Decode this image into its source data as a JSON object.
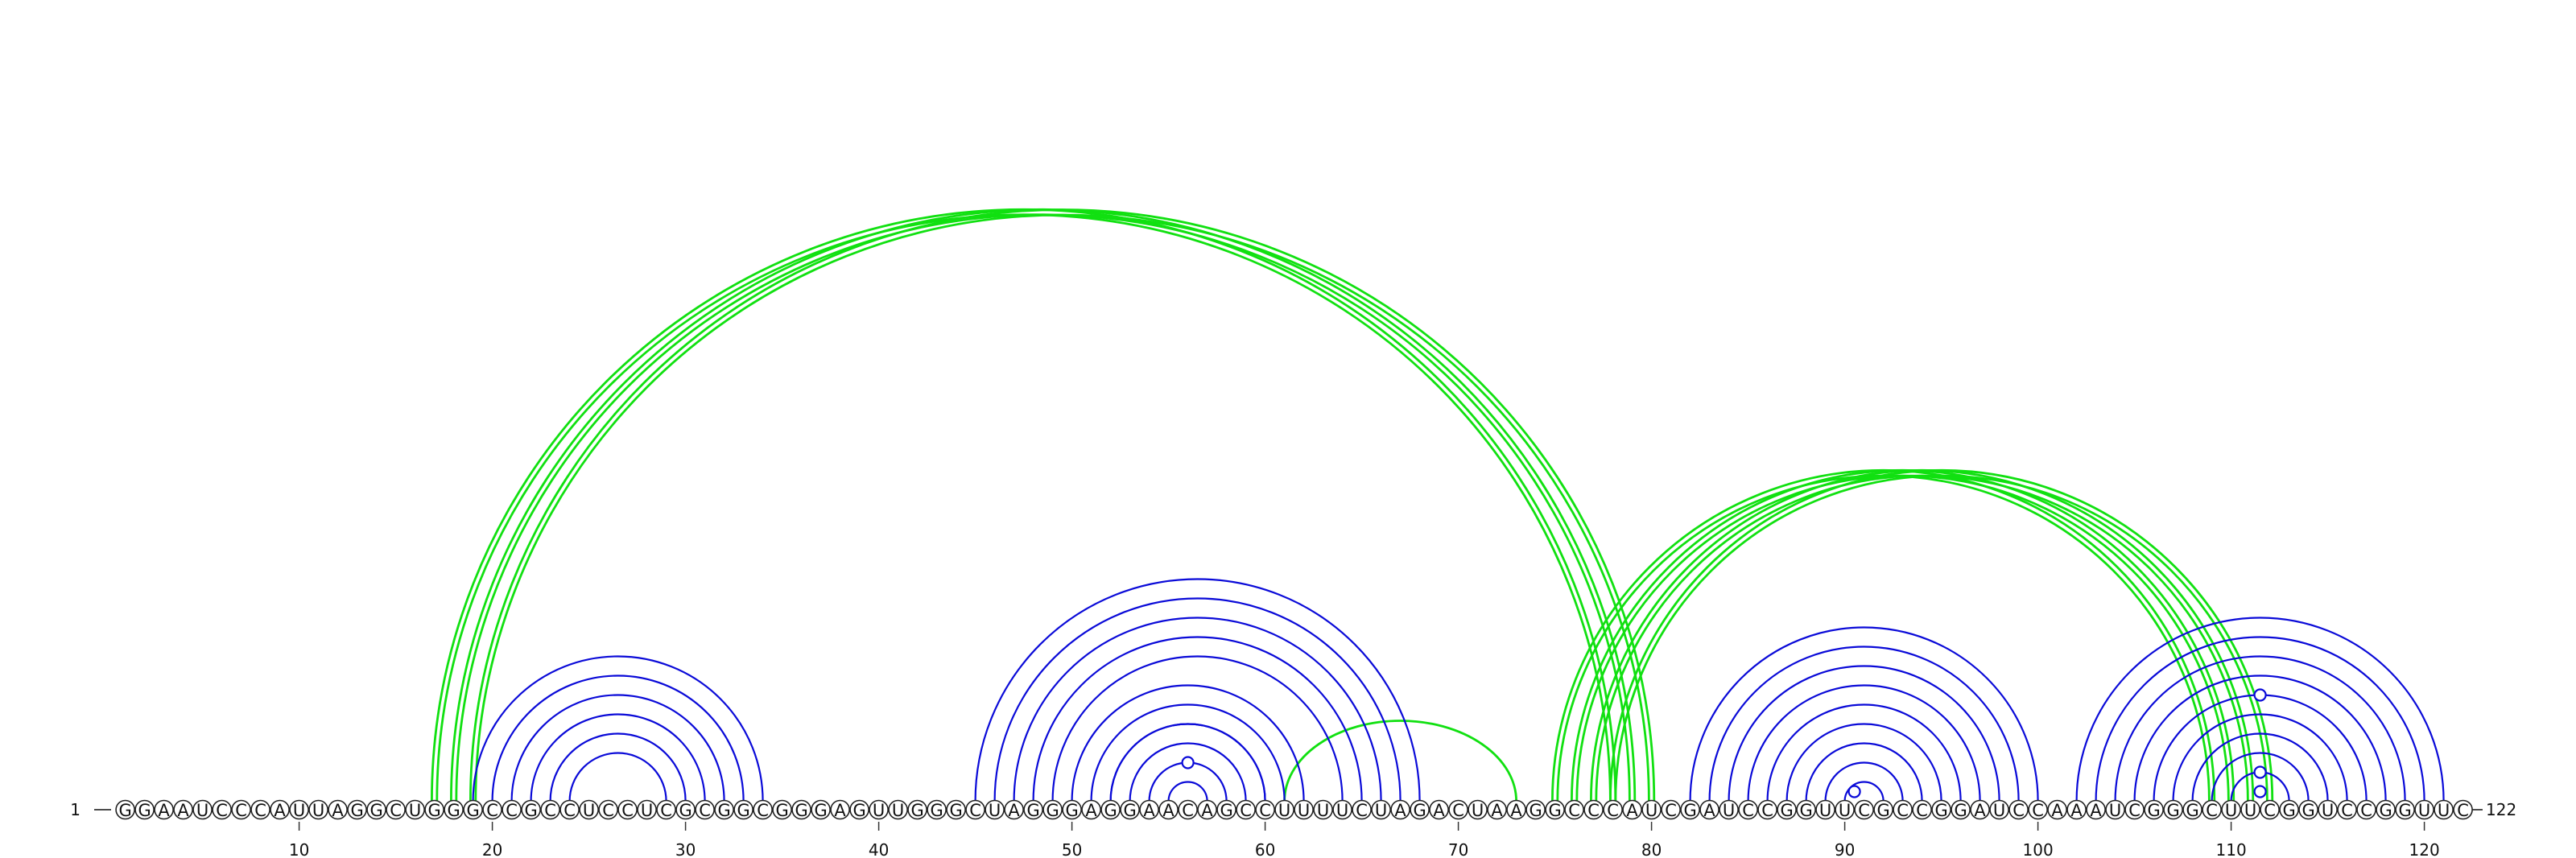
{
  "diagram": {
    "type": "rna-arc-diagram",
    "sequence": "GGAAUCCCAUUAGGCUGGGCCGCCUCCUCGCGGCGGGAGUUGGGCUAGGGAGGAACAGCCUUUUCUAGACUAAGGCCCAUCGAUCCGGUUCGCCGGAUCCAAAUCGGGCUUCGGUCCGGUUC",
    "start_label": "1",
    "end_label": "122",
    "tick_labels": [
      "10",
      "20",
      "30",
      "40",
      "50",
      "60",
      "70",
      "80",
      "90",
      "100",
      "110",
      "120"
    ],
    "colors": {
      "blue_arcs": "#0a0ad8",
      "green_arcs": "#11e011",
      "outline": "#222222"
    },
    "blue_stems": [
      {
        "i": 19,
        "j": 34,
        "count": 6
      },
      {
        "i": 45,
        "j": 68,
        "count": 5
      },
      {
        "i": 50,
        "j": 62,
        "count": 3
      },
      {
        "i": 52,
        "j": 60,
        "count": 4
      },
      {
        "i": 82,
        "j": 100,
        "count": 4
      },
      {
        "i": 86,
        "j": 96,
        "count": 6
      },
      {
        "i": 102,
        "j": 121,
        "count": 3
      },
      {
        "i": 105,
        "j": 118,
        "count": 6
      }
    ],
    "green_stems": [
      {
        "i": 17,
        "j": 78,
        "count": 3,
        "double": true
      },
      {
        "i": 61,
        "j": 73,
        "count": 1,
        "double": false
      },
      {
        "i": 75,
        "j": 109,
        "count": 4,
        "double": true
      }
    ],
    "gu_markers": [
      {
        "i": 54,
        "j": 58
      },
      {
        "i": 90,
        "j": 91
      },
      {
        "i": 106,
        "j": 117
      },
      {
        "i": 110,
        "j": 113
      },
      {
        "i": 111,
        "j": 112
      }
    ]
  }
}
